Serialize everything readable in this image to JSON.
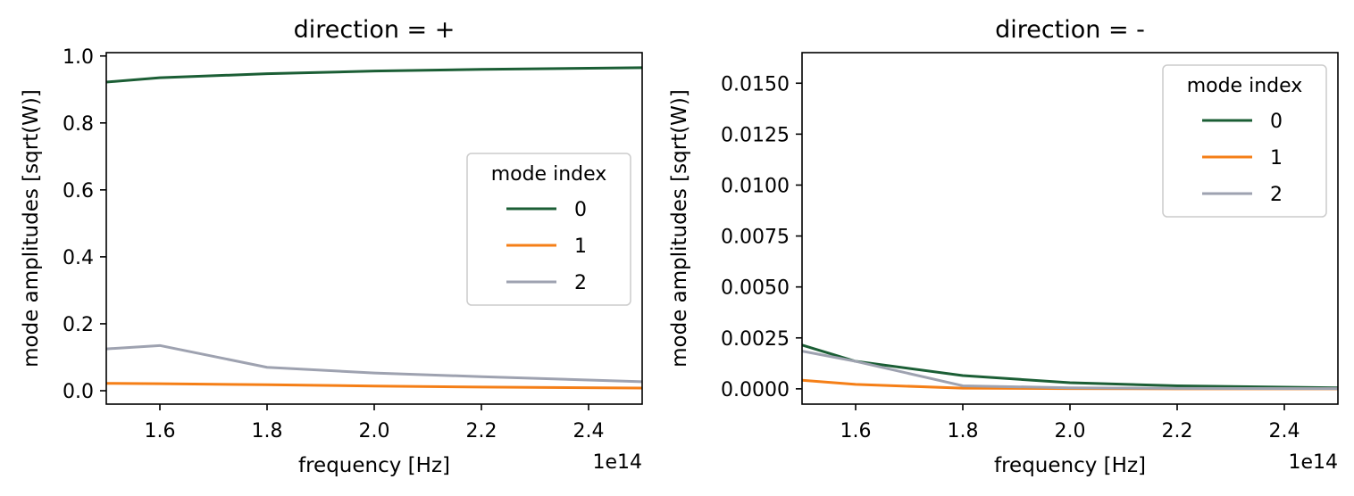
{
  "chart_data": [
    {
      "type": "line",
      "title": "direction = +",
      "xlabel": "frequency [Hz]",
      "ylabel": "mode amplitudes [sqrt(W)]",
      "x_offset_label": "1e14",
      "xlim": [
        1.5,
        2.5
      ],
      "ylim": [
        -0.04,
        1.01
      ],
      "xticks": [
        1.6,
        1.8,
        2.0,
        2.2,
        2.4
      ],
      "xtick_labels": [
        "1.6",
        "1.8",
        "2.0",
        "2.2",
        "2.4"
      ],
      "yticks": [
        0.0,
        0.2,
        0.4,
        0.6,
        0.8,
        1.0
      ],
      "ytick_labels": [
        "0.0",
        "0.2",
        "0.4",
        "0.6",
        "0.8",
        "1.0"
      ],
      "grid": false,
      "legend": {
        "title": "mode index",
        "placement": "center-right"
      },
      "x": [
        1.5,
        1.6,
        1.8,
        2.0,
        2.2,
        2.5
      ],
      "series": [
        {
          "name": "0",
          "color": "#1b5e35",
          "values": [
            0.922,
            0.935,
            0.947,
            0.955,
            0.96,
            0.965
          ]
        },
        {
          "name": "1",
          "color": "#f57f17",
          "values": [
            0.022,
            0.021,
            0.018,
            0.014,
            0.011,
            0.008
          ]
        },
        {
          "name": "2",
          "color": "#9ea2b0",
          "values": [
            0.125,
            0.135,
            0.07,
            0.053,
            0.042,
            0.027
          ]
        }
      ]
    },
    {
      "type": "line",
      "title": "direction = -",
      "xlabel": "frequency [Hz]",
      "ylabel": "mode amplitudes [sqrt(W)]",
      "x_offset_label": "1e14",
      "xlim": [
        1.5,
        2.5
      ],
      "ylim": [
        -0.00075,
        0.0165
      ],
      "xticks": [
        1.6,
        1.8,
        2.0,
        2.2,
        2.4
      ],
      "xtick_labels": [
        "1.6",
        "1.8",
        "2.0",
        "2.2",
        "2.4"
      ],
      "yticks": [
        0.0,
        0.0025,
        0.005,
        0.0075,
        0.01,
        0.0125,
        0.015
      ],
      "ytick_labels": [
        "0.0000",
        "0.0025",
        "0.0050",
        "0.0075",
        "0.0100",
        "0.0125",
        "0.0150"
      ],
      "grid": false,
      "legend": {
        "title": "mode index",
        "placement": "top-right"
      },
      "x": [
        1.5,
        1.6,
        1.8,
        2.0,
        2.2,
        2.5
      ],
      "series": [
        {
          "name": "0",
          "color": "#1b5e35",
          "values": [
            0.00215,
            0.00135,
            0.00065,
            0.0003,
            0.00015,
            5e-05
          ]
        },
        {
          "name": "1",
          "color": "#f57f17",
          "values": [
            0.00042,
            0.00022,
            3e-05,
            1e-05,
            0.0,
            0.0
          ]
        },
        {
          "name": "2",
          "color": "#9ea2b0",
          "values": [
            0.00185,
            0.00135,
            0.00015,
            5e-05,
            2e-05,
            1e-05
          ]
        }
      ]
    }
  ]
}
